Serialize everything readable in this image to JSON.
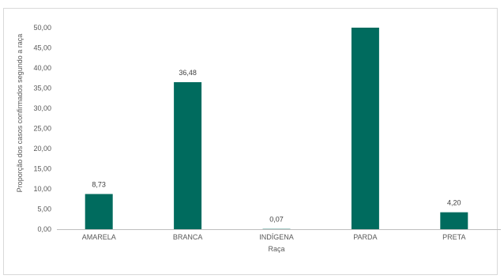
{
  "chart_data": {
    "type": "bar",
    "categories": [
      "AMARELA",
      "BRANCA",
      "INDÍGENA",
      "PARDA",
      "PRETA"
    ],
    "values": [
      8.73,
      36.48,
      0.07,
      50.0,
      4.2
    ],
    "data_labels": [
      "8,73",
      "36,48",
      "0,07",
      "",
      "4,20"
    ],
    "xlabel": "Raça",
    "ylabel": "Proporção dos casos confirmados segundo a raça",
    "ylim": [
      0,
      50
    ],
    "yticks": [
      "0,00",
      "5,00",
      "10,00",
      "15,00",
      "20,00",
      "25,00",
      "30,00",
      "35,00",
      "40,00",
      "45,00",
      "50,00"
    ],
    "bar_color": "#006b5e",
    "grid": false
  }
}
